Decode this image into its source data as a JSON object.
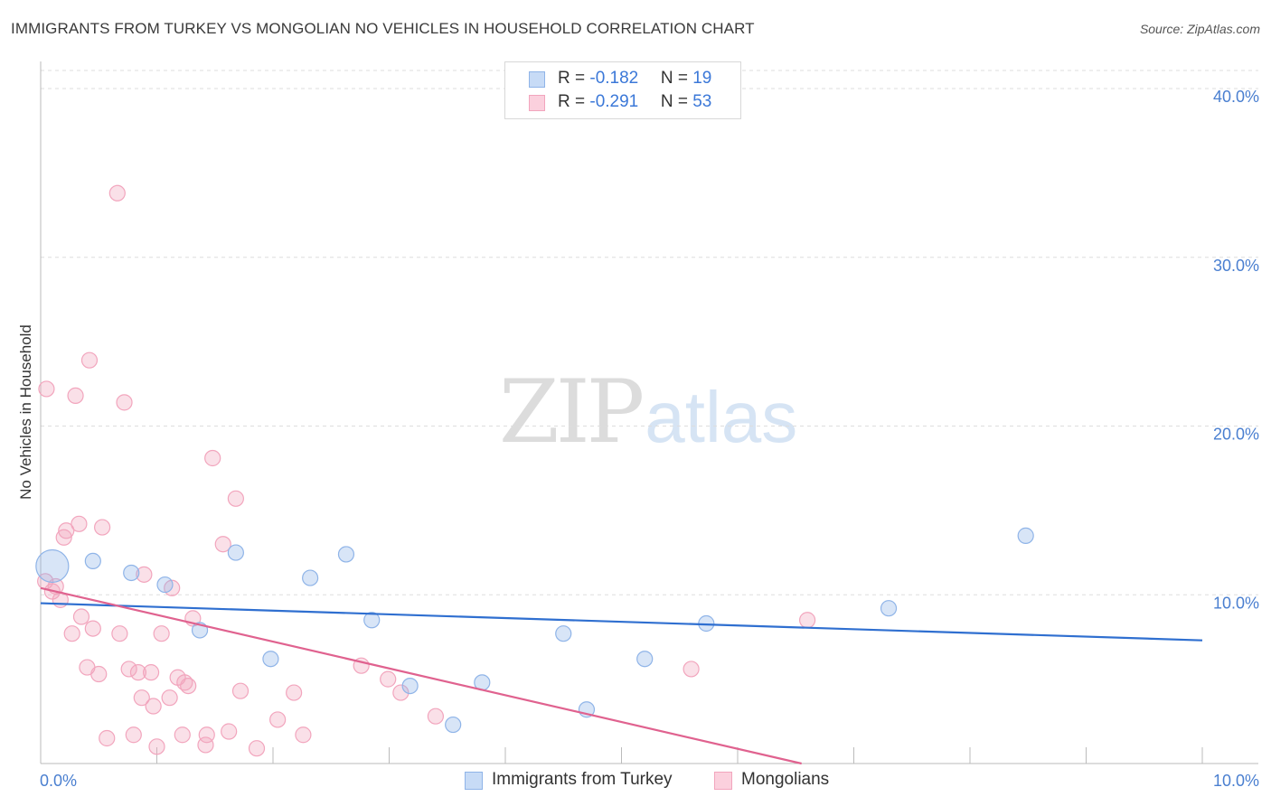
{
  "header": {
    "title": "IMMIGRANTS FROM TURKEY VS MONGOLIAN NO VEHICLES IN HOUSEHOLD CORRELATION CHART",
    "source": "Source: ZipAtlas.com"
  },
  "watermark": {
    "zip": "ZIP",
    "atlas": "atlas"
  },
  "legend_top": {
    "rows": [
      {
        "r_label": "R = ",
        "r_value": "-0.182",
        "n_label": "N = ",
        "n_value": "19",
        "color": "#8fb4e8"
      },
      {
        "r_label": "R = ",
        "r_value": "-0.291",
        "n_label": "N = ",
        "n_value": "53",
        "color": "#f2a5bd"
      }
    ]
  },
  "legend_bottom": {
    "items": [
      {
        "label": "Immigrants from Turkey",
        "color": "#8fb4e8"
      },
      {
        "label": "Mongolians",
        "color": "#f2a5bd"
      }
    ]
  },
  "chart_data": {
    "type": "scatter",
    "title": "IMMIGRANTS FROM TURKEY VS MONGOLIAN NO VEHICLES IN HOUSEHOLD CORRELATION CHART",
    "xlabel": "",
    "ylabel": "No Vehicles in Household",
    "xlim": [
      0,
      10
    ],
    "ylim": [
      0,
      40
    ],
    "x_tick_labels": [
      {
        "value": 0,
        "label": "0.0%"
      },
      {
        "value": 10,
        "label": "10.0%"
      }
    ],
    "y_tick_labels": [
      {
        "value": 10,
        "label": "10.0%"
      },
      {
        "value": 20,
        "label": "20.0%"
      },
      {
        "value": 30,
        "label": "30.0%"
      },
      {
        "value": 40,
        "label": "40.0%"
      }
    ],
    "y_gridlines": [
      10,
      20,
      30,
      40
    ],
    "colors": {
      "turkey": "#8fb4e8",
      "turkey_line": "#2f6fd0",
      "mongolians": "#f2a5bd",
      "mongolians_line": "#e0628f"
    },
    "series": [
      {
        "name": "Immigrants from Turkey",
        "r": -0.182,
        "n": 19,
        "trend": {
          "x": [
            0,
            10
          ],
          "y": [
            9.5,
            7.3
          ]
        },
        "points": [
          {
            "x": 0.1,
            "y": 11.7,
            "big": true
          },
          {
            "x": 0.45,
            "y": 12.0
          },
          {
            "x": 0.78,
            "y": 11.3
          },
          {
            "x": 1.07,
            "y": 10.6
          },
          {
            "x": 1.37,
            "y": 7.9
          },
          {
            "x": 1.68,
            "y": 12.5
          },
          {
            "x": 1.98,
            "y": 6.2
          },
          {
            "x": 2.32,
            "y": 11.0
          },
          {
            "x": 2.63,
            "y": 12.4
          },
          {
            "x": 2.85,
            "y": 8.5
          },
          {
            "x": 3.18,
            "y": 4.6
          },
          {
            "x": 3.55,
            "y": 2.3
          },
          {
            "x": 3.8,
            "y": 4.8
          },
          {
            "x": 4.5,
            "y": 7.7
          },
          {
            "x": 4.7,
            "y": 3.2
          },
          {
            "x": 5.2,
            "y": 6.2
          },
          {
            "x": 5.73,
            "y": 8.3
          },
          {
            "x": 7.3,
            "y": 9.2
          },
          {
            "x": 8.48,
            "y": 13.5
          }
        ]
      },
      {
        "name": "Mongolians",
        "r": -0.291,
        "n": 53,
        "trend": {
          "x": [
            0,
            6.55
          ],
          "y": [
            10.4,
            0
          ]
        },
        "points": [
          {
            "x": 0.05,
            "y": 22.2
          },
          {
            "x": 0.3,
            "y": 21.8
          },
          {
            "x": 0.42,
            "y": 23.9
          },
          {
            "x": 0.66,
            "y": 33.8
          },
          {
            "x": 0.72,
            "y": 21.4
          },
          {
            "x": 1.48,
            "y": 18.1
          },
          {
            "x": 1.68,
            "y": 15.7
          },
          {
            "x": 0.22,
            "y": 13.8
          },
          {
            "x": 0.33,
            "y": 14.2
          },
          {
            "x": 0.53,
            "y": 14.0
          },
          {
            "x": 0.2,
            "y": 13.4
          },
          {
            "x": 1.57,
            "y": 13.0
          },
          {
            "x": 0.04,
            "y": 10.8
          },
          {
            "x": 0.1,
            "y": 10.2
          },
          {
            "x": 0.13,
            "y": 10.5
          },
          {
            "x": 0.17,
            "y": 9.7
          },
          {
            "x": 0.89,
            "y": 11.2
          },
          {
            "x": 1.13,
            "y": 10.4
          },
          {
            "x": 0.35,
            "y": 8.7
          },
          {
            "x": 0.45,
            "y": 8.0
          },
          {
            "x": 0.27,
            "y": 7.7
          },
          {
            "x": 0.68,
            "y": 7.7
          },
          {
            "x": 1.04,
            "y": 7.7
          },
          {
            "x": 1.31,
            "y": 8.6
          },
          {
            "x": 0.4,
            "y": 5.7
          },
          {
            "x": 0.5,
            "y": 5.3
          },
          {
            "x": 0.76,
            "y": 5.6
          },
          {
            "x": 0.84,
            "y": 5.4
          },
          {
            "x": 0.95,
            "y": 5.4
          },
          {
            "x": 1.18,
            "y": 5.1
          },
          {
            "x": 1.24,
            "y": 4.8
          },
          {
            "x": 1.27,
            "y": 4.6
          },
          {
            "x": 0.87,
            "y": 3.9
          },
          {
            "x": 0.97,
            "y": 3.4
          },
          {
            "x": 1.11,
            "y": 3.9
          },
          {
            "x": 1.72,
            "y": 4.3
          },
          {
            "x": 2.18,
            "y": 4.2
          },
          {
            "x": 2.76,
            "y": 5.8
          },
          {
            "x": 2.99,
            "y": 5.0
          },
          {
            "x": 3.1,
            "y": 4.2
          },
          {
            "x": 2.04,
            "y": 2.6
          },
          {
            "x": 3.4,
            "y": 2.8
          },
          {
            "x": 0.57,
            "y": 1.5
          },
          {
            "x": 0.8,
            "y": 1.7
          },
          {
            "x": 1.22,
            "y": 1.7
          },
          {
            "x": 1.43,
            "y": 1.7
          },
          {
            "x": 1.62,
            "y": 1.9
          },
          {
            "x": 2.26,
            "y": 1.7
          },
          {
            "x": 1.0,
            "y": 1.0
          },
          {
            "x": 1.42,
            "y": 1.1
          },
          {
            "x": 1.86,
            "y": 0.9
          },
          {
            "x": 5.6,
            "y": 5.6
          },
          {
            "x": 6.6,
            "y": 8.5
          }
        ]
      }
    ]
  }
}
